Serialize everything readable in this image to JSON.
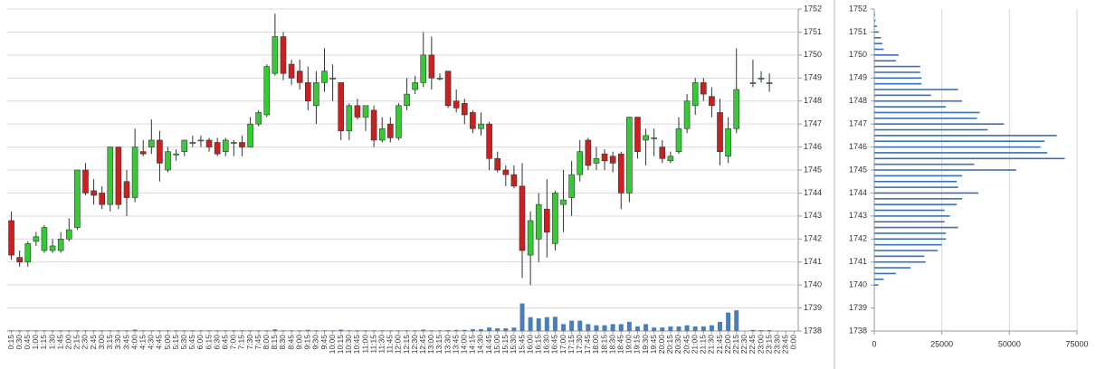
{
  "chart_data": [
    {
      "type": "candlestick",
      "categories": [
        "0:15",
        "0:30",
        "0:45",
        "1:00",
        "1:15",
        "1:30",
        "1:45",
        "2:00",
        "2:15",
        "2:30",
        "2:45",
        "3:00",
        "3:15",
        "3:30",
        "3:45",
        "4:00",
        "4:15",
        "4:30",
        "4:45",
        "5:00",
        "5:15",
        "5:30",
        "5:45",
        "6:00",
        "6:15",
        "6:30",
        "6:45",
        "7:00",
        "7:15",
        "7:30",
        "7:45",
        "8:00",
        "8:15",
        "8:30",
        "8:45",
        "9:00",
        "9:15",
        "9:30",
        "9:45",
        "10:00",
        "10:15",
        "10:30",
        "10:45",
        "11:00",
        "11:15",
        "11:30",
        "11:45",
        "12:00",
        "12:15",
        "12:30",
        "12:45",
        "13:00",
        "13:15",
        "13:30",
        "13:45",
        "14:00",
        "14:15",
        "14:30",
        "14:45",
        "15:00",
        "15:15",
        "15:30",
        "15:45",
        "16:00",
        "16:15",
        "16:30",
        "16:45",
        "17:00",
        "17:15",
        "17:30",
        "17:45",
        "18:00",
        "18:15",
        "18:30",
        "18:45",
        "19:00",
        "19:15",
        "19:30",
        "19:45",
        "20:00",
        "20:15",
        "20:30",
        "20:45",
        "21:00",
        "21:15",
        "21:30",
        "21:45",
        "22:00",
        "22:15",
        "22:30",
        "22:45",
        "23:00",
        "23:15",
        "23:30",
        "23:45",
        "0:00"
      ],
      "open": [
        1742.8,
        1741.2,
        1741.0,
        1741.9,
        1741.5,
        1741.5,
        1741.5,
        1742.0,
        1742.5,
        1745.0,
        1744.1,
        1744.0,
        1743.5,
        1746.0,
        1744.5,
        1743.8,
        1745.8,
        1746.0,
        1746.3,
        1745.0,
        1745.7,
        1745.8,
        1746.2,
        1746.3,
        1746.3,
        1746.2,
        1745.8,
        1746.2,
        1746.2,
        1746.0,
        1747.0,
        1747.4,
        1749.2,
        1750.8,
        1749.6,
        1749.3,
        1748.8,
        1747.8,
        1748.8,
        1749.0,
        1748.8,
        1746.7,
        1747.8,
        1747.3,
        1747.6,
        1746.3,
        1747.0,
        1746.4,
        1747.8,
        1748.5,
        1748.8,
        1750.0,
        1749.0,
        1749.3,
        1748.0,
        1747.9,
        1747.5,
        1746.8,
        1747.0,
        1745.5,
        1745.0,
        1744.8,
        1744.3,
        1741.3,
        1742.0,
        1743.3,
        1741.8,
        1743.5,
        1743.8,
        1744.8,
        1746.3,
        1745.3,
        1745.7,
        1745.6,
        1745.7,
        1744.0,
        1747.3,
        1746.3,
        1746.4,
        1746.0,
        1745.4,
        1745.8,
        1746.8,
        1747.8,
        1748.8,
        1748.2,
        1747.5,
        1745.6,
        1746.8,
        null,
        1748.8,
        1749.0,
        1748.8,
        null,
        null,
        null
      ],
      "high": [
        1743.2,
        1741.5,
        1741.9,
        1742.3,
        1742.6,
        1742.0,
        1742.3,
        1742.9,
        1745.0,
        1745.3,
        1744.6,
        1744.3,
        1746.0,
        1746.0,
        1745.0,
        1746.8,
        1746.3,
        1747.2,
        1746.7,
        1746.0,
        1745.9,
        1746.3,
        1746.5,
        1746.5,
        1746.4,
        1746.4,
        1746.4,
        1746.3,
        1746.5,
        1747.3,
        1747.6,
        1749.6,
        1751.8,
        1751.0,
        1749.8,
        1749.8,
        1749.5,
        1749.3,
        1750.3,
        1749.6,
        1748.8,
        1747.9,
        1748.1,
        1747.8,
        1747.8,
        1747.3,
        1747.3,
        1747.9,
        1749.0,
        1749.1,
        1751.0,
        1750.8,
        1749.2,
        1749.3,
        1748.5,
        1748.1,
        1747.6,
        1747.5,
        1747.1,
        1745.8,
        1745.2,
        1745.2,
        1745.3,
        1743.2,
        1744.0,
        1744.6,
        1744.1,
        1745.0,
        1745.4,
        1746.3,
        1746.4,
        1746.0,
        1745.9,
        1745.8,
        1745.8,
        1747.3,
        1747.3,
        1746.8,
        1746.8,
        1746.3,
        1745.8,
        1747.3,
        1748.3,
        1749.0,
        1749.0,
        1748.6,
        1748.1,
        1747.3,
        1750.3,
        null,
        1749.8,
        1749.3,
        1749.2,
        null,
        null,
        null
      ],
      "low": [
        1741.1,
        1740.8,
        1740.8,
        1741.7,
        1741.4,
        1741.4,
        1741.4,
        1741.9,
        1742.4,
        1743.9,
        1743.5,
        1743.3,
        1743.2,
        1743.3,
        1743.0,
        1743.6,
        1745.6,
        1745.7,
        1744.5,
        1744.9,
        1745.4,
        1745.6,
        1746.0,
        1746.0,
        1745.8,
        1745.6,
        1745.6,
        1745.6,
        1745.6,
        1746.0,
        1746.9,
        1747.3,
        1749.1,
        1748.9,
        1748.7,
        1748.5,
        1747.6,
        1747.0,
        1748.4,
        1748.0,
        1746.3,
        1746.3,
        1747.2,
        1746.7,
        1746.0,
        1746.2,
        1746.2,
        1746.3,
        1747.6,
        1748.3,
        1748.6,
        1748.5,
        1748.9,
        1747.7,
        1747.5,
        1747.0,
        1746.6,
        1746.5,
        1745.0,
        1744.9,
        1744.3,
        1744.2,
        1740.3,
        1740.0,
        1741.0,
        1741.2,
        1741.5,
        1742.3,
        1743.0,
        1744.5,
        1745.0,
        1745.0,
        1745.0,
        1744.9,
        1743.3,
        1743.6,
        1745.5,
        1745.2,
        1745.6,
        1745.3,
        1745.3,
        1745.7,
        1746.6,
        1747.4,
        1748.0,
        1747.3,
        1745.2,
        1745.3,
        1746.6,
        null,
        1748.6,
        1748.8,
        1748.4,
        null,
        null,
        null
      ],
      "close": [
        1741.3,
        1741.0,
        1741.8,
        1742.1,
        1742.5,
        1741.7,
        1742.0,
        1742.4,
        1745.0,
        1744.0,
        1743.9,
        1743.5,
        1746.0,
        1743.5,
        1743.8,
        1746.0,
        1745.7,
        1746.3,
        1745.3,
        1745.8,
        1745.7,
        1746.3,
        1746.2,
        1746.3,
        1746.0,
        1745.7,
        1746.3,
        1746.2,
        1746.0,
        1747.0,
        1747.5,
        1749.5,
        1750.8,
        1749.2,
        1749.0,
        1748.8,
        1748.0,
        1748.8,
        1749.3,
        1749.0,
        1746.7,
        1747.8,
        1747.3,
        1747.8,
        1746.3,
        1746.8,
        1746.4,
        1747.8,
        1748.3,
        1748.8,
        1750.0,
        1749.0,
        1749.0,
        1747.8,
        1747.7,
        1747.4,
        1746.8,
        1747.0,
        1745.5,
        1745.0,
        1744.8,
        1744.3,
        1741.5,
        1742.8,
        1743.5,
        1742.3,
        1744.0,
        1743.7,
        1744.8,
        1745.8,
        1745.2,
        1745.5,
        1745.4,
        1745.3,
        1744.0,
        1747.3,
        1745.8,
        1746.5,
        1746.4,
        1745.5,
        1745.6,
        1746.8,
        1748.0,
        1748.8,
        1748.3,
        1747.8,
        1745.8,
        1746.8,
        1748.5,
        null,
        1748.8,
        1749.0,
        1748.8,
        null,
        null,
        null
      ],
      "volume": [
        1738.03,
        1738.03,
        1738.03,
        1738.03,
        1738.03,
        1738.03,
        1738.03,
        1738.03,
        1738.03,
        1738.03,
        1738.03,
        1738.03,
        1738.03,
        1738.03,
        1738.03,
        1738.06,
        1738.03,
        1738.03,
        1738.03,
        1738.03,
        1738.03,
        1738.03,
        1738.03,
        1738.03,
        1738.03,
        1738.03,
        1738.03,
        1738.03,
        1738.03,
        1738.03,
        1738.03,
        1738.03,
        1738.07,
        1738.03,
        1738.03,
        1738.03,
        1738.05,
        1738.03,
        1738.03,
        1738.03,
        1738.06,
        1738.03,
        1738.03,
        1738.03,
        1738.03,
        1738.03,
        1738.03,
        1738.03,
        1738.03,
        1738.03,
        1738.06,
        1738.03,
        1738.03,
        1738.04,
        1738.05,
        1738.05,
        1738.08,
        1738.08,
        1738.15,
        1738.12,
        1738.12,
        1738.15,
        1739.2,
        1738.6,
        1738.55,
        1738.6,
        1738.62,
        1738.3,
        1738.45,
        1738.45,
        1738.3,
        1738.25,
        1738.25,
        1738.3,
        1738.3,
        1738.4,
        1738.2,
        1738.3,
        1738.15,
        1738.15,
        1738.2,
        1738.2,
        1738.25,
        1738.2,
        1738.2,
        1738.25,
        1738.4,
        1738.8,
        1738.9,
        null,
        1738.05,
        1738.04,
        1738.04,
        null,
        null,
        null
      ],
      "up_color": "#33cc33",
      "down_color": "#cc1f1f",
      "volume_color": "#4a7ebb",
      "ylim": [
        1738,
        1752
      ],
      "yticks": [
        1738,
        1739,
        1740,
        1741,
        1742,
        1743,
        1744,
        1745,
        1746,
        1747,
        1748,
        1749,
        1750,
        1751,
        1752
      ],
      "grid": "y"
    },
    {
      "type": "barh",
      "y": [
        1740.0,
        1740.25,
        1740.5,
        1740.75,
        1741.0,
        1741.25,
        1741.5,
        1741.75,
        1742.0,
        1742.25,
        1742.5,
        1742.75,
        1743.0,
        1743.25,
        1743.5,
        1743.75,
        1744.0,
        1744.25,
        1744.5,
        1744.75,
        1745.0,
        1745.25,
        1745.5,
        1745.75,
        1746.0,
        1746.25,
        1746.5,
        1746.75,
        1747.0,
        1747.25,
        1747.5,
        1747.75,
        1748.0,
        1748.25,
        1748.5,
        1748.75,
        1749.0,
        1749.25,
        1749.5,
        1749.75,
        1750.0,
        1750.25,
        1750.5,
        1750.75,
        1751.0,
        1751.25,
        1751.5,
        1751.75
      ],
      "values": [
        1500,
        3500,
        8000,
        13500,
        19000,
        18500,
        23500,
        25000,
        26500,
        26500,
        31000,
        26000,
        28000,
        26000,
        30500,
        32500,
        38500,
        31000,
        30500,
        32500,
        52500,
        37000,
        70500,
        64000,
        61500,
        63000,
        67500,
        42000,
        48000,
        38000,
        39000,
        26500,
        32500,
        21000,
        31000,
        17500,
        17500,
        17000,
        17000,
        8000,
        9000,
        3500,
        3000,
        2500,
        1700,
        1000,
        500,
        300
      ],
      "color": "#3a6fb5",
      "xlim": [
        0,
        75000
      ],
      "xticks": [
        0,
        25000,
        50000,
        75000
      ],
      "ylim": [
        1738,
        1752
      ],
      "yticks": [
        1738,
        1739,
        1740,
        1741,
        1742,
        1743,
        1744,
        1745,
        1746,
        1747,
        1748,
        1749,
        1750,
        1751,
        1752
      ],
      "grid": "x"
    }
  ]
}
